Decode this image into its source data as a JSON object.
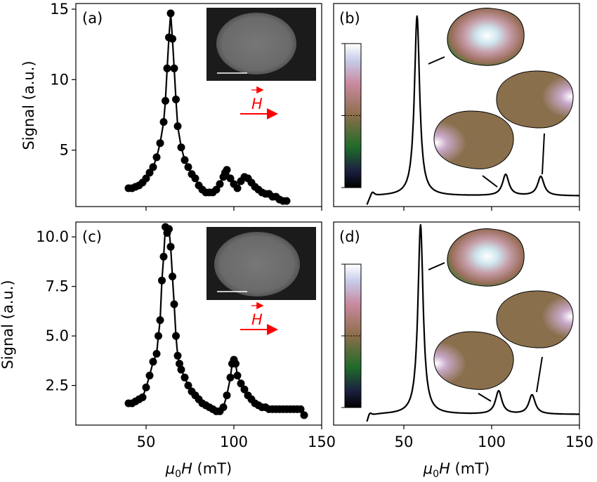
{
  "figure": {
    "xlabel_prefix": "μ",
    "xlabel_sub": "0",
    "xlabel_var": "H",
    "xlabel_unit": " (mT)",
    "field_label": "H",
    "field_color": "#ff0000"
  },
  "chart_data": [
    {
      "type": "line",
      "panel": "(a)",
      "ylabel": "Signal (a.u.)",
      "xlim": [
        10,
        150
      ],
      "ylim": [
        1.0,
        15.4
      ],
      "xticks": [
        50,
        100,
        150
      ],
      "yticks": [
        5,
        10,
        15
      ],
      "x_tick_labels_shown": false,
      "markers": true,
      "inset": "sem-image",
      "series": [
        {
          "x": [
            40,
            42,
            44,
            46,
            48,
            50,
            52,
            54,
            56,
            58,
            60,
            61,
            62,
            63,
            64,
            65,
            66,
            67,
            68,
            70,
            72,
            74,
            76,
            78,
            80,
            82,
            84,
            86,
            88,
            90,
            92,
            94,
            95,
            96,
            98,
            100,
            102,
            104,
            106,
            108,
            110,
            112,
            114,
            116,
            118,
            120,
            122,
            124,
            126,
            128,
            130
          ],
          "y": [
            2.3,
            2.3,
            2.4,
            2.5,
            2.7,
            3.0,
            3.4,
            3.8,
            4.5,
            5.5,
            7.0,
            8.5,
            10.8,
            13.0,
            14.7,
            12.9,
            10.8,
            8.6,
            6.7,
            5.2,
            4.3,
            3.8,
            3.3,
            3.0,
            2.5,
            2.2,
            2.0,
            2.0,
            2.0,
            2.2,
            2.6,
            3.1,
            3.4,
            3.6,
            3.0,
            2.6,
            2.3,
            2.8,
            3.1,
            3.0,
            2.7,
            2.4,
            2.2,
            2.0,
            1.9,
            1.9,
            1.7,
            1.7,
            1.5,
            1.4,
            1.4
          ]
        }
      ]
    },
    {
      "type": "line",
      "panel": "(b)",
      "xlim": [
        10,
        150
      ],
      "ylim": [
        0,
        1.05
      ],
      "xticks": [
        50,
        100,
        150
      ],
      "x_tick_labels_shown": false,
      "colorbar": true,
      "series": [
        {
          "peaks": [
            {
              "center": 57.5,
              "width": 1.8,
              "amplitude": 0.93
            },
            {
              "center": 108,
              "width": 2.2,
              "amplitude": 0.11
            },
            {
              "center": 128,
              "width": 2.2,
              "amplitude": 0.1
            },
            {
              "center": 32,
              "width": 1.5,
              "amplitude": 0.03
            }
          ],
          "baseline": 0.055,
          "x_range": [
            29,
            150
          ]
        }
      ]
    },
    {
      "type": "line",
      "panel": "(c)",
      "ylabel": "Signal (a.u.)",
      "xlim": [
        10,
        150
      ],
      "ylim": [
        0.5,
        10.75
      ],
      "xticks": [
        50,
        100,
        150
      ],
      "yticks": [
        2.5,
        5.0,
        7.5,
        10.0
      ],
      "x_tick_labels": [
        "50",
        "100",
        "150"
      ],
      "markers": true,
      "inset": "sem-image",
      "series": [
        {
          "x": [
            40,
            42,
            44,
            46,
            48,
            50,
            52,
            54,
            56,
            57,
            58,
            59,
            60,
            61,
            62,
            63,
            64,
            65,
            66,
            67,
            68,
            69,
            70,
            72,
            74,
            76,
            78,
            80,
            82,
            84,
            86,
            88,
            90,
            92,
            94,
            96,
            98,
            99,
            100,
            101,
            102,
            104,
            106,
            108,
            110,
            112,
            114,
            116,
            118,
            120,
            122,
            124,
            126,
            128,
            130,
            132,
            134,
            136,
            138,
            140
          ],
          "y": [
            1.6,
            1.6,
            1.7,
            1.8,
            1.9,
            2.4,
            3.0,
            3.7,
            4.1,
            5.0,
            5.8,
            7.8,
            9.0,
            10.5,
            10.2,
            10.4,
            9.5,
            8.0,
            6.6,
            5.0,
            4.0,
            3.6,
            3.3,
            2.9,
            2.5,
            2.2,
            2.0,
            1.8,
            1.6,
            1.5,
            1.4,
            1.3,
            1.2,
            1.2,
            1.4,
            2.0,
            2.9,
            3.6,
            3.8,
            3.6,
            3.0,
            2.6,
            2.3,
            2.0,
            1.8,
            1.6,
            1.5,
            1.4,
            1.4,
            1.3,
            1.3,
            1.3,
            1.3,
            1.3,
            1.3,
            1.3,
            1.3,
            1.3,
            1.3,
            1.0
          ]
        }
      ]
    },
    {
      "type": "line",
      "panel": "(d)",
      "xlim": [
        10,
        150
      ],
      "ylim": [
        0,
        1.05
      ],
      "xticks": [
        50,
        100,
        150
      ],
      "x_tick_labels": [
        "50",
        "100",
        "150"
      ],
      "colorbar": true,
      "series": [
        {
          "peaks": [
            {
              "center": 59.5,
              "width": 1.8,
              "amplitude": 0.98
            },
            {
              "center": 104,
              "width": 2.2,
              "amplitude": 0.12
            },
            {
              "center": 123,
              "width": 2.2,
              "amplitude": 0.1
            },
            {
              "center": 30.5,
              "width": 1.5,
              "amplitude": 0.03
            }
          ],
          "baseline": 0.055,
          "x_range": [
            29,
            150
          ]
        }
      ]
    }
  ]
}
